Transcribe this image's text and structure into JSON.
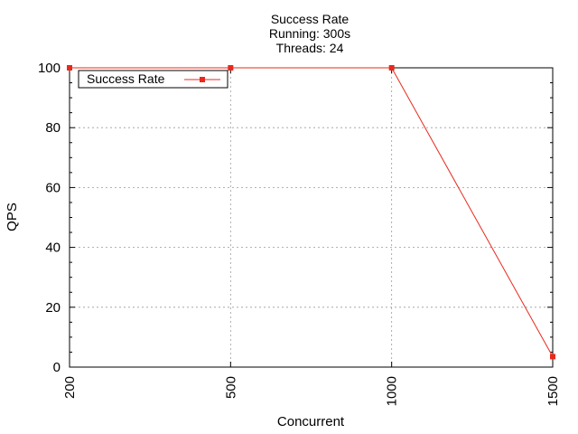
{
  "chart_data": {
    "type": "line",
    "title_lines": [
      "Success Rate",
      "Running: 300s",
      "Threads: 24"
    ],
    "xlabel": "Concurrent",
    "ylabel": "QPS",
    "x_categories": [
      "200",
      "500",
      "1000",
      "1500"
    ],
    "x_scale": "ordinal-evenly-spaced",
    "ylim": [
      0,
      100
    ],
    "y_ticks": [
      "0",
      "20",
      "40",
      "60",
      "80",
      "100"
    ],
    "grid": true,
    "legend": {
      "position": "top-left",
      "entries": [
        "Success Rate"
      ]
    },
    "series": [
      {
        "name": "Success Rate",
        "color": "#e8291c",
        "marker": "square",
        "values": [
          100,
          100,
          100,
          3.5
        ]
      }
    ]
  }
}
